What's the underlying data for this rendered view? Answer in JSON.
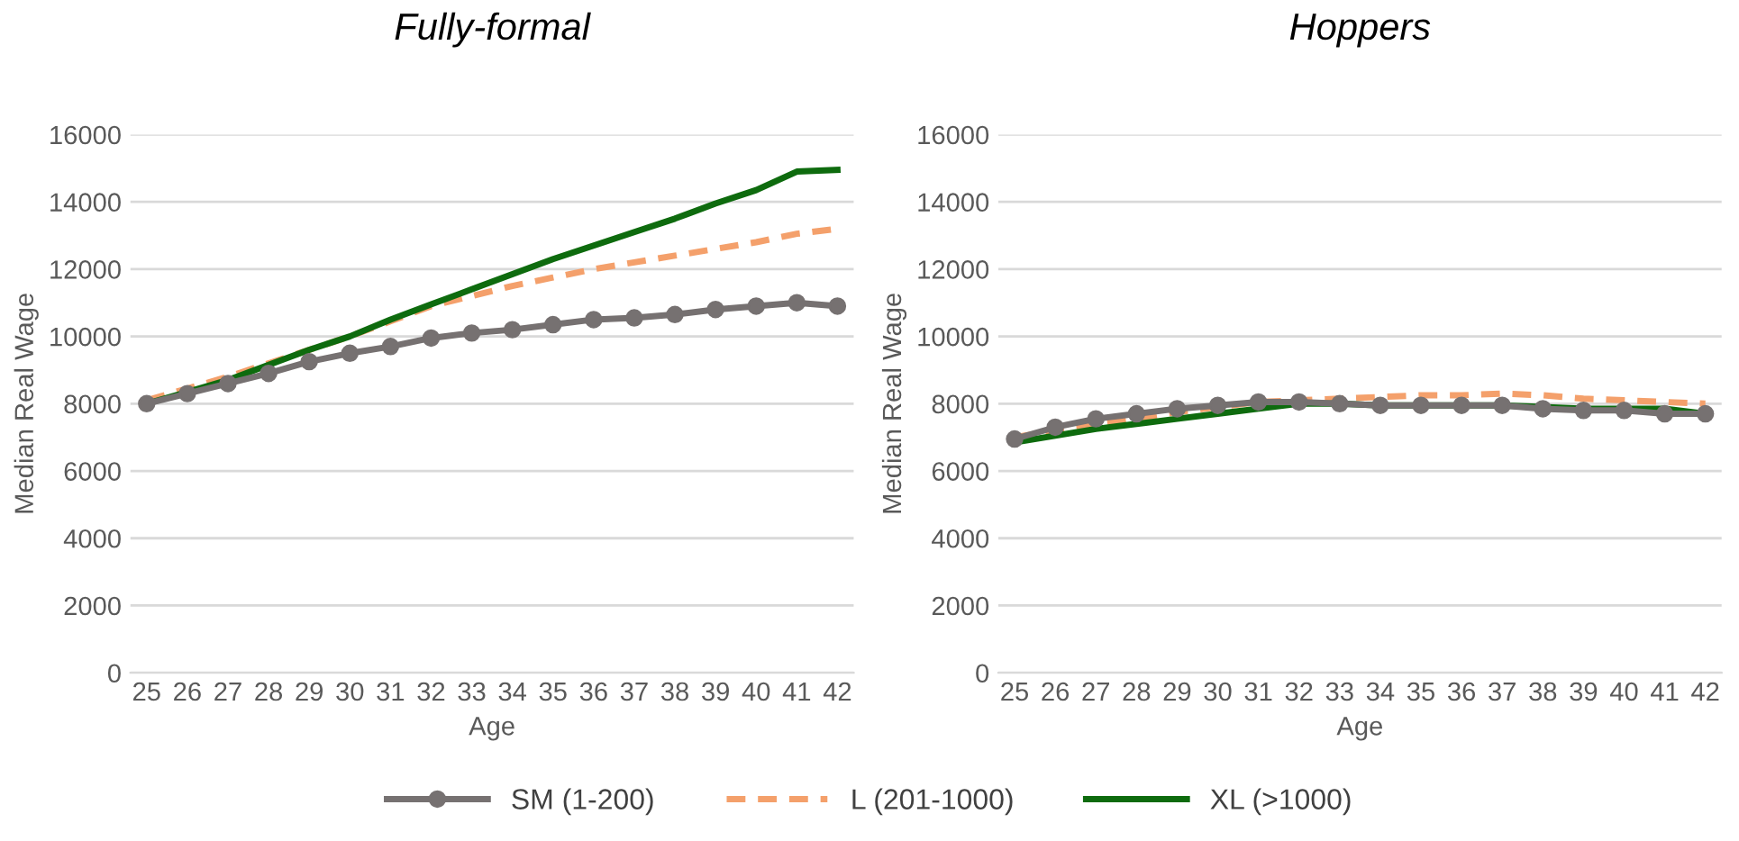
{
  "chart_data": [
    {
      "type": "line",
      "title": "Fully-formal",
      "xlabel": "Age",
      "ylabel": "Median Real Wage",
      "categories": [
        "25",
        "26",
        "27",
        "28",
        "29",
        "30",
        "31",
        "32",
        "33",
        "34",
        "35",
        "36",
        "37",
        "38",
        "39",
        "40",
        "41",
        "42"
      ],
      "ylim": [
        0,
        16000
      ],
      "yticks": [
        0,
        2000,
        4000,
        6000,
        8000,
        10000,
        12000,
        14000,
        16000
      ],
      "grid": "y",
      "legend": "bottom",
      "series": [
        {
          "name": "SM (1-200)",
          "color": "#767171",
          "marker": "circle",
          "line_style": "solid",
          "values": [
            8000,
            8300,
            8600,
            8900,
            9250,
            9500,
            9700,
            9950,
            10100,
            10200,
            10350,
            10500,
            10550,
            10650,
            10800,
            10900,
            11000,
            10900
          ]
        },
        {
          "name": "L (201-1000)",
          "color": "#f4a06b",
          "marker": "none",
          "line_style": "dashed",
          "values": [
            8100,
            8450,
            8800,
            9200,
            9600,
            10000,
            10450,
            10900,
            11200,
            11500,
            11750,
            12000,
            12200,
            12400,
            12600,
            12800,
            13050,
            13200
          ]
        },
        {
          "name": "XL (>1000)",
          "color": "#0e6b0e",
          "marker": "none",
          "line_style": "solid",
          "values": [
            8000,
            8350,
            8700,
            9150,
            9600,
            10000,
            10500,
            10950,
            11400,
            11850,
            12300,
            12700,
            13100,
            13500,
            13950,
            14350,
            14900,
            14950
          ]
        }
      ]
    },
    {
      "type": "line",
      "title": "Hoppers",
      "xlabel": "Age",
      "ylabel": "Median Real Wage",
      "categories": [
        "25",
        "26",
        "27",
        "28",
        "29",
        "30",
        "31",
        "32",
        "33",
        "34",
        "35",
        "36",
        "37",
        "38",
        "39",
        "40",
        "41",
        "42"
      ],
      "ylim": [
        0,
        16000
      ],
      "yticks": [
        0,
        2000,
        4000,
        6000,
        8000,
        10000,
        12000,
        14000,
        16000
      ],
      "grid": "y",
      "legend": "bottom",
      "series": [
        {
          "name": "SM (1-200)",
          "color": "#767171",
          "marker": "circle",
          "line_style": "solid",
          "values": [
            6950,
            7300,
            7550,
            7700,
            7850,
            7950,
            8050,
            8050,
            8000,
            7950,
            7950,
            7950,
            7950,
            7850,
            7800,
            7800,
            7700,
            7700
          ]
        },
        {
          "name": "L (201-1000)",
          "color": "#f4a06b",
          "marker": "none",
          "line_style": "dashed",
          "values": [
            7000,
            7200,
            7400,
            7550,
            7750,
            7900,
            8050,
            8100,
            8150,
            8200,
            8250,
            8250,
            8300,
            8250,
            8150,
            8100,
            8050,
            8000
          ]
        },
        {
          "name": "XL (>1000)",
          "color": "#0e6b0e",
          "marker": "none",
          "line_style": "solid",
          "values": [
            6850,
            7050,
            7250,
            7400,
            7550,
            7700,
            7850,
            8000,
            8000,
            7950,
            7950,
            7950,
            7950,
            7900,
            7850,
            7850,
            7850,
            7700
          ]
        }
      ]
    }
  ]
}
